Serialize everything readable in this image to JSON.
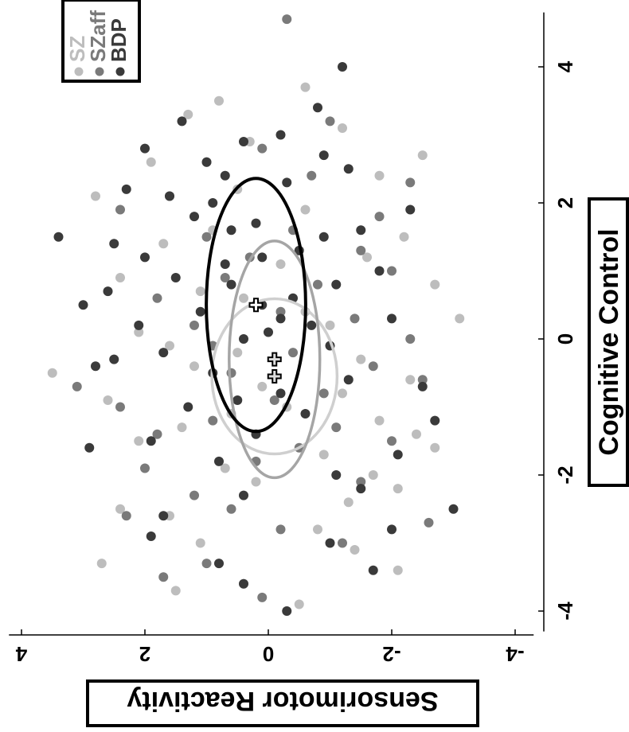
{
  "chart_data": {
    "type": "scatter",
    "orientation": "rotated-90-cw",
    "xlabel": "Cognitive Control",
    "ylabel": "Sensorimotor Reactivity",
    "xlim": [
      -4.3,
      4.8
    ],
    "ylim": [
      -4.3,
      4.1
    ],
    "xticks": [
      -4,
      -2,
      0,
      2,
      4
    ],
    "yticks": [
      -4,
      -2,
      0,
      2,
      4
    ],
    "xtick_labels": [
      "-4",
      "-2",
      "0",
      "2",
      "4"
    ],
    "ytick_labels": [
      "-4",
      "-2",
      "0",
      "2",
      "4"
    ],
    "legend_position": "top-left",
    "series": [
      {
        "name": "SZ",
        "color": "#bdbdbd",
        "centroid": [
          -0.55,
          -0.1
        ],
        "ellipse": {
          "rx": 0.95,
          "ry": 1.45
        },
        "points": [
          [
            -0.5,
            3.5
          ],
          [
            -3.3,
            2.7
          ],
          [
            3.3,
            1.3
          ],
          [
            3.7,
            -0.6
          ],
          [
            -3.6,
            0.4
          ],
          [
            -3.1,
            -1.4
          ],
          [
            -2.2,
            -2.1
          ],
          [
            2.4,
            -1.8
          ],
          [
            0.8,
            -2.7
          ],
          [
            -1.6,
            -2.7
          ],
          [
            -2.5,
            2.4
          ],
          [
            2.1,
            2.8
          ],
          [
            -1.3,
            1.4
          ],
          [
            1.2,
            -1.6
          ],
          [
            -0.4,
            1.2
          ],
          [
            0.2,
            -1.0
          ],
          [
            -1.0,
            -0.3
          ],
          [
            -0.2,
            0.5
          ],
          [
            0.6,
            0.4
          ],
          [
            -0.8,
            -1.2
          ],
          [
            1.6,
            0.9
          ],
          [
            -1.9,
            0.7
          ],
          [
            -2.8,
            -0.8
          ],
          [
            2.9,
            0.3
          ],
          [
            -3.9,
            -0.5
          ],
          [
            0.3,
            -3.1
          ],
          [
            -0.6,
            -2.3
          ],
          [
            1.5,
            -2.2
          ],
          [
            -1.5,
            2.1
          ],
          [
            2.6,
            1.9
          ],
          [
            -2.6,
            1.6
          ],
          [
            0.9,
            2.4
          ],
          [
            -0.9,
            2.6
          ],
          [
            -3.4,
            -2.1
          ],
          [
            3.1,
            -1.2
          ],
          [
            -1.2,
            -1.8
          ],
          [
            1.9,
            -0.6
          ],
          [
            -0.1,
            1.6
          ],
          [
            -1.7,
            -0.9
          ],
          [
            0.7,
            1.1
          ],
          [
            -2.1,
            0.2
          ],
          [
            2.2,
            0.5
          ],
          [
            -3.0,
            1.1
          ],
          [
            1.1,
            -0.2
          ],
          [
            -0.3,
            -1.5
          ],
          [
            -1.1,
            0.6
          ],
          [
            -0.7,
            0.1
          ],
          [
            0.4,
            -0.6
          ],
          [
            -2.4,
            -1.3
          ],
          [
            1.4,
            1.7
          ],
          [
            -3.7,
            1.5
          ],
          [
            2.7,
            -2.5
          ],
          [
            -1.4,
            -2.4
          ],
          [
            0.1,
            2.1
          ],
          [
            -2.0,
            -1.7
          ],
          [
            3.5,
            0.8
          ]
        ]
      },
      {
        "name": "SZaff",
        "color": "#7a7a7a",
        "centroid": [
          -0.3,
          -0.1
        ],
        "ellipse": {
          "rx": 1.45,
          "ry": 1.05
        },
        "points": [
          [
            4.7,
            -0.3
          ],
          [
            2.6,
            1.0
          ],
          [
            1.3,
            -1.5
          ],
          [
            -0.7,
            3.1
          ],
          [
            -2.6,
            2.3
          ],
          [
            -3.3,
            1.0
          ],
          [
            -3.8,
            0.1
          ],
          [
            0.0,
            -2.3
          ],
          [
            -1.4,
            1.8
          ],
          [
            -0.8,
            -0.9
          ],
          [
            -1.8,
            0.2
          ],
          [
            -0.5,
            0.6
          ],
          [
            1.5,
            1.0
          ],
          [
            2.4,
            -0.7
          ],
          [
            1.0,
            -2.0
          ],
          [
            -2.1,
            -1.5
          ],
          [
            -1.0,
            2.4
          ],
          [
            0.5,
            0.2
          ],
          [
            -0.2,
            -0.4
          ],
          [
            0.2,
            1.2
          ],
          [
            -1.6,
            -0.5
          ],
          [
            1.8,
            -1.8
          ],
          [
            -2.8,
            -0.2
          ],
          [
            -1.2,
            0.9
          ],
          [
            0.8,
            -0.8
          ],
          [
            2.1,
            1.6
          ],
          [
            -0.4,
            -1.7
          ],
          [
            -3.0,
            -1.2
          ],
          [
            1.2,
            0.3
          ],
          [
            -2.3,
            1.2
          ],
          [
            0.3,
            -1.4
          ],
          [
            -0.9,
            -0.1
          ],
          [
            1.6,
            -0.4
          ],
          [
            2.8,
            0.1
          ],
          [
            -1.9,
            2.0
          ],
          [
            0.6,
            1.8
          ],
          [
            -0.6,
            -2.5
          ],
          [
            3.2,
            -1.0
          ],
          [
            -3.5,
            1.7
          ],
          [
            -1.3,
            -1.1
          ],
          [
            0.9,
            0.7
          ],
          [
            -2.5,
            0.6
          ],
          [
            1.9,
            2.4
          ],
          [
            -0.1,
            0.9
          ],
          [
            2.3,
            -2.3
          ],
          [
            -2.7,
            -2.6
          ],
          [
            0.4,
            -0.2
          ],
          [
            -1.5,
            -2.0
          ]
        ]
      },
      {
        "name": "BDP",
        "color": "#3a3a3a",
        "centroid": [
          0.5,
          0.2
        ],
        "ellipse": {
          "rx": 1.55,
          "ry": 1.15
        },
        "points": [
          [
            4.0,
            -1.2
          ],
          [
            3.4,
            -0.8
          ],
          [
            3.2,
            1.4
          ],
          [
            2.9,
            0.4
          ],
          [
            2.6,
            1.0
          ],
          [
            2.1,
            1.6
          ],
          [
            1.5,
            3.4
          ],
          [
            1.2,
            2.0
          ],
          [
            0.5,
            3.0
          ],
          [
            0.2,
            2.1
          ],
          [
            -0.3,
            2.5
          ],
          [
            -1.6,
            2.9
          ],
          [
            -2.9,
            1.9
          ],
          [
            -3.6,
            0.4
          ],
          [
            -4.0,
            -0.3
          ],
          [
            -3.3,
            0.8
          ],
          [
            -2.6,
            1.7
          ],
          [
            -2.0,
            -1.1
          ],
          [
            -1.7,
            -2.1
          ],
          [
            -1.2,
            -2.7
          ],
          [
            -0.7,
            -2.5
          ],
          [
            0.3,
            -2.0
          ],
          [
            1.6,
            -1.5
          ],
          [
            2.7,
            -0.9
          ],
          [
            1.9,
            -2.3
          ],
          [
            -2.5,
            -3.0
          ],
          [
            -2.2,
            -1.5
          ],
          [
            0.8,
            -1.1
          ],
          [
            1.1,
            0.7
          ],
          [
            0.5,
            0.1
          ],
          [
            0.0,
            0.4
          ],
          [
            -0.5,
            0.9
          ],
          [
            -1.0,
            1.3
          ],
          [
            1.7,
            0.2
          ],
          [
            2.3,
            -0.3
          ],
          [
            -1.4,
            0.2
          ],
          [
            0.9,
            1.5
          ],
          [
            1.3,
            -0.5
          ],
          [
            0.2,
            -0.7
          ],
          [
            -0.8,
            -0.2
          ],
          [
            2.0,
            0.9
          ],
          [
            1.4,
            2.5
          ],
          [
            -0.2,
            1.7
          ],
          [
            0.6,
            -0.4
          ],
          [
            -1.8,
            0.8
          ],
          [
            2.5,
            -1.3
          ],
          [
            0.7,
            2.6
          ],
          [
            -0.6,
            -1.3
          ],
          [
            1.8,
            1.2
          ],
          [
            -1.1,
            -0.6
          ],
          [
            3.0,
            -0.2
          ],
          [
            0.1,
            0.0
          ],
          [
            -2.3,
            0.4
          ],
          [
            1.0,
            -1.8
          ],
          [
            -0.4,
            2.8
          ],
          [
            2.8,
            2.0
          ],
          [
            -3.0,
            -1.0
          ],
          [
            0.4,
            1.1
          ],
          [
            1.6,
            0.6
          ],
          [
            -1.5,
            1.9
          ],
          [
            2.2,
            2.3
          ],
          [
            -0.1,
            -1.0
          ],
          [
            0.3,
            -0.2
          ],
          [
            1.2,
            0.1
          ],
          [
            -0.9,
            0.5
          ],
          [
            0.8,
            0.6
          ],
          [
            2.4,
            0.7
          ],
          [
            -2.8,
            -2.0
          ],
          [
            -3.4,
            -1.7
          ],
          [
            1.5,
            -0.9
          ]
        ]
      }
    ],
    "centroid_marker": "+",
    "colors": {
      "SZ": "#bdbdbd",
      "SZaff": "#7a7a7a",
      "BDP": "#3a3a3a",
      "ellipse_BDP": "#000000",
      "ellipse_SZ": "#cfcfcf",
      "ellipse_SZaff": "#a5a5a5"
    }
  }
}
